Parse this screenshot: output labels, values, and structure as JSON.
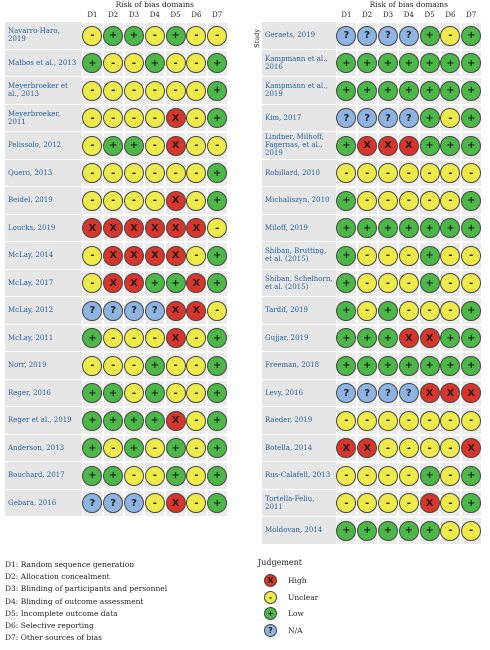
{
  "left": {
    "header": "Risk of bias domains",
    "domains": [
      "D1",
      "D2",
      "D3",
      "D4",
      "D5",
      "D6",
      "D7"
    ],
    "studies": [
      {
        "name": "Navarro-Haro, 2019",
        "judgements": [
          "-",
          "+",
          "+",
          "-",
          "+",
          "-",
          "-"
        ]
      },
      {
        "name": "Malbos et al., 2013",
        "judgements": [
          "+",
          "-",
          "-",
          "+",
          "-",
          "-",
          "+"
        ]
      },
      {
        "name": "Meyerbroeker et al., 2013",
        "judgements": [
          "-",
          "-",
          "-",
          "-",
          "-",
          "-",
          "+"
        ]
      },
      {
        "name": "Meyerbroeker, 2011",
        "judgements": [
          "-",
          "-",
          "-",
          "-",
          "X",
          "-",
          "+"
        ]
      },
      {
        "name": "Pelissolo, 2012",
        "judgements": [
          "-",
          "+",
          "+",
          "-",
          "X",
          "-",
          "-"
        ]
      },
      {
        "name": "Quero, 2013",
        "judgements": [
          "-",
          "-",
          "-",
          "-",
          "-",
          "-",
          "+"
        ]
      },
      {
        "name": "Beidel, 2019",
        "judgements": [
          "-",
          "-",
          "-",
          "-",
          "X",
          "-",
          "+"
        ]
      },
      {
        "name": "Loucks, 2019",
        "judgements": [
          "X",
          "X",
          "X",
          "X",
          "X",
          "X",
          "-"
        ]
      },
      {
        "name": "McLay, 2014",
        "judgements": [
          "-",
          "X",
          "X",
          "X",
          "X",
          "-",
          "+"
        ]
      },
      {
        "name": "McLay, 2017",
        "judgements": [
          "-",
          "X",
          "X",
          "+",
          "+",
          "X",
          "+"
        ]
      },
      {
        "name": "McLay, 2012",
        "judgements": [
          "?",
          "?",
          "?",
          "?",
          "X",
          "X",
          "-"
        ]
      },
      {
        "name": "McLay, 2011",
        "judgements": [
          "+",
          "-",
          "-",
          "-",
          "X",
          "-",
          "+"
        ]
      },
      {
        "name": "Norr, 2019",
        "judgements": [
          "-",
          "-",
          "-",
          "+",
          "-",
          "-",
          "+"
        ]
      },
      {
        "name": "Reger, 2016",
        "judgements": [
          "+",
          "+",
          "-",
          "+",
          "-",
          "-",
          "+"
        ]
      },
      {
        "name": "Reger et al., 2019",
        "judgements": [
          "+",
          "+",
          "+",
          "+",
          "X",
          "-",
          "+"
        ]
      },
      {
        "name": "Anderson, 2013",
        "judgements": [
          "+",
          "-",
          "+",
          "-",
          "+",
          "-",
          "+"
        ]
      },
      {
        "name": "Bouchard, 2017",
        "judgements": [
          "+",
          "+",
          "-",
          "-",
          "+",
          "-",
          "+"
        ]
      },
      {
        "name": "Gebara, 2016",
        "judgements": [
          "?",
          "?",
          "?",
          "-",
          "X",
          "-",
          "+"
        ]
      }
    ]
  },
  "right": {
    "header": "Risk of bias domains",
    "study_label": "Study",
    "domains": [
      "D1",
      "D2",
      "D3",
      "D4",
      "D5",
      "D6",
      "D7"
    ],
    "studies": [
      {
        "name": "Geraets, 2019",
        "judgements": [
          "?",
          "?",
          "?",
          "?",
          "+",
          "-",
          "+"
        ]
      },
      {
        "name": "Kampmann et al., 2016",
        "judgements": [
          "+",
          "+",
          "+",
          "+",
          "+",
          "+",
          "+"
        ]
      },
      {
        "name": "Kampmann et al., 2019",
        "judgements": [
          "+",
          "+",
          "+",
          "+",
          "+",
          "+",
          "+"
        ]
      },
      {
        "name": "Kim, 2017",
        "judgements": [
          "?",
          "?",
          "?",
          "?",
          "+",
          "-",
          "+"
        ]
      },
      {
        "name": "Lindner, Milhoff, Fagernas, et al., 2019",
        "judgements": [
          "+",
          "X",
          "X",
          "X",
          "+",
          "+",
          "+"
        ]
      },
      {
        "name": "Robillard, 2010",
        "judgements": [
          "-",
          "-",
          "-",
          "-",
          "-",
          "-",
          "-"
        ]
      },
      {
        "name": "Michaliszyn, 2010",
        "judgements": [
          "+",
          "-",
          "-",
          "-",
          "-",
          "-",
          "+"
        ]
      },
      {
        "name": "Miloff, 2019",
        "judgements": [
          "+",
          "+",
          "+",
          "+",
          "+",
          "+",
          "+"
        ]
      },
      {
        "name": "Shiban, Brutting, et al. (2015)",
        "judgements": [
          "+",
          "-",
          "-",
          "-",
          "+",
          "-",
          "-"
        ]
      },
      {
        "name": "Shiban, Schelhorn, et al. (2015)",
        "judgements": [
          "+",
          "-",
          "-",
          "-",
          "+",
          "-",
          "-"
        ]
      },
      {
        "name": "Tardif, 2019",
        "judgements": [
          "+",
          "-",
          "+",
          "-",
          "-",
          "-",
          "+"
        ]
      },
      {
        "name": "Gujjar, 2019",
        "judgements": [
          "+",
          "+",
          "+",
          "X",
          "X",
          "+",
          "+"
        ]
      },
      {
        "name": "Freeman, 2018",
        "judgements": [
          "+",
          "+",
          "+",
          "+",
          "+",
          "+",
          "+"
        ]
      },
      {
        "name": "Levy, 2016",
        "judgements": [
          "?",
          "?",
          "?",
          "?",
          "X",
          "X",
          "X"
        ]
      },
      {
        "name": "Raeder, 2019",
        "judgements": [
          "-",
          "-",
          "-",
          "-",
          "-",
          "-",
          "-"
        ]
      },
      {
        "name": "Botella, 2014",
        "judgements": [
          "X",
          "X",
          "-",
          "-",
          "-",
          "-",
          "X"
        ]
      },
      {
        "name": "Rus-Calafell, 2013",
        "judgements": [
          "-",
          "-",
          "-",
          "-",
          "+",
          "-",
          "+"
        ]
      },
      {
        "name": "Tortella-Feliu, 2011",
        "judgements": [
          "-",
          "-",
          "-",
          "-",
          "X",
          "-",
          "+"
        ]
      },
      {
        "name": "Moldovan, 2014",
        "judgements": [
          "+",
          "+",
          "+",
          "+",
          "+",
          "-",
          "-"
        ]
      }
    ]
  },
  "domain_key": [
    "D1: Random sequence generation",
    "D2: Allocation concealment",
    "D3: Blinding of participants and personnel",
    "D4: Blinding of outcome assessment",
    "D5: Incomplete outcome data",
    "D6: Selective reporting",
    "D7: Other sources of bias"
  ],
  "judgement": {
    "title": "Judgement",
    "items": [
      {
        "symbol": "X",
        "label": "High",
        "color": "#d9352b"
      },
      {
        "symbol": "-",
        "label": "Unclear",
        "color": "#eeea4a"
      },
      {
        "symbol": "+",
        "label": "Low",
        "color": "#4cb848"
      },
      {
        "symbol": "?",
        "label": "N/A",
        "color": "#8db4e2"
      }
    ]
  }
}
